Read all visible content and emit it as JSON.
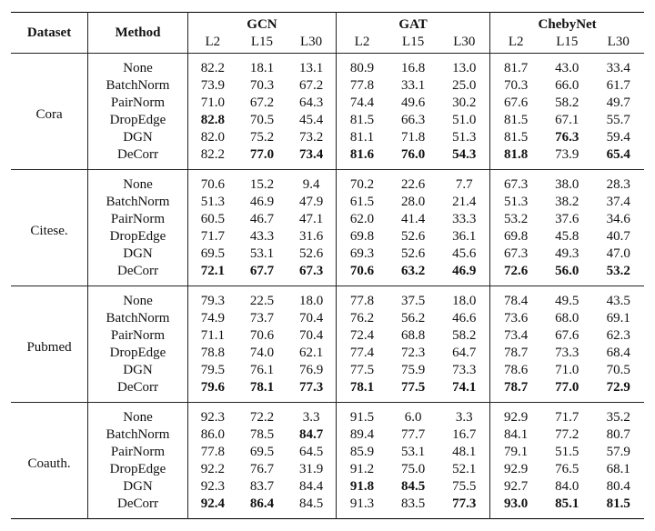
{
  "header": {
    "dataset": "Dataset",
    "method": "Method",
    "groups": [
      {
        "name": "GCN",
        "layers": [
          "L2",
          "L15",
          "L30"
        ]
      },
      {
        "name": "GAT",
        "layers": [
          "L2",
          "L15",
          "L30"
        ]
      },
      {
        "name": "ChebyNet",
        "layers": [
          "L2",
          "L15",
          "L30"
        ]
      }
    ]
  },
  "sections": [
    {
      "dataset": "Cora",
      "rows": [
        {
          "method": "None",
          "values": [
            "82.2",
            "18.1",
            "13.1",
            "80.9",
            "16.8",
            "13.0",
            "81.7",
            "43.0",
            "33.4"
          ],
          "bold": [
            false,
            false,
            false,
            false,
            false,
            false,
            false,
            false,
            false
          ]
        },
        {
          "method": "BatchNorm",
          "values": [
            "73.9",
            "70.3",
            "67.2",
            "77.8",
            "33.1",
            "25.0",
            "70.3",
            "66.0",
            "61.7"
          ],
          "bold": [
            false,
            false,
            false,
            false,
            false,
            false,
            false,
            false,
            false
          ]
        },
        {
          "method": "PairNorm",
          "values": [
            "71.0",
            "67.2",
            "64.3",
            "74.4",
            "49.6",
            "30.2",
            "67.6",
            "58.2",
            "49.7"
          ],
          "bold": [
            false,
            false,
            false,
            false,
            false,
            false,
            false,
            false,
            false
          ]
        },
        {
          "method": "DropEdge",
          "values": [
            "82.8",
            "70.5",
            "45.4",
            "81.5",
            "66.3",
            "51.0",
            "81.5",
            "67.1",
            "55.7"
          ],
          "bold": [
            true,
            false,
            false,
            false,
            false,
            false,
            false,
            false,
            false
          ]
        },
        {
          "method": "DGN",
          "values": [
            "82.0",
            "75.2",
            "73.2",
            "81.1",
            "71.8",
            "51.3",
            "81.5",
            "76.3",
            "59.4"
          ],
          "bold": [
            false,
            false,
            false,
            false,
            false,
            false,
            false,
            true,
            false
          ]
        },
        {
          "method": "DeCorr",
          "values": [
            "82.2",
            "77.0",
            "73.4",
            "81.6",
            "76.0",
            "54.3",
            "81.8",
            "73.9",
            "65.4"
          ],
          "bold": [
            false,
            true,
            true,
            true,
            true,
            true,
            true,
            false,
            true
          ]
        }
      ]
    },
    {
      "dataset": "Citese.",
      "rows": [
        {
          "method": "None",
          "values": [
            "70.6",
            "15.2",
            "9.4",
            "70.2",
            "22.6",
            "7.7",
            "67.3",
            "38.0",
            "28.3"
          ],
          "bold": [
            false,
            false,
            false,
            false,
            false,
            false,
            false,
            false,
            false
          ]
        },
        {
          "method": "BatchNorm",
          "values": [
            "51.3",
            "46.9",
            "47.9",
            "61.5",
            "28.0",
            "21.4",
            "51.3",
            "38.2",
            "37.4"
          ],
          "bold": [
            false,
            false,
            false,
            false,
            false,
            false,
            false,
            false,
            false
          ]
        },
        {
          "method": "PairNorm",
          "values": [
            "60.5",
            "46.7",
            "47.1",
            "62.0",
            "41.4",
            "33.3",
            "53.2",
            "37.6",
            "34.6"
          ],
          "bold": [
            false,
            false,
            false,
            false,
            false,
            false,
            false,
            false,
            false
          ]
        },
        {
          "method": "DropEdge",
          "values": [
            "71.7",
            "43.3",
            "31.6",
            "69.8",
            "52.6",
            "36.1",
            "69.8",
            "45.8",
            "40.7"
          ],
          "bold": [
            false,
            false,
            false,
            false,
            false,
            false,
            false,
            false,
            false
          ]
        },
        {
          "method": "DGN",
          "values": [
            "69.5",
            "53.1",
            "52.6",
            "69.3",
            "52.6",
            "45.6",
            "67.3",
            "49.3",
            "47.0"
          ],
          "bold": [
            false,
            false,
            false,
            false,
            false,
            false,
            false,
            false,
            false
          ]
        },
        {
          "method": "DeCorr",
          "values": [
            "72.1",
            "67.7",
            "67.3",
            "70.6",
            "63.2",
            "46.9",
            "72.6",
            "56.0",
            "53.2"
          ],
          "bold": [
            true,
            true,
            true,
            true,
            true,
            true,
            true,
            true,
            true
          ]
        }
      ]
    },
    {
      "dataset": "Pubmed",
      "rows": [
        {
          "method": "None",
          "values": [
            "79.3",
            "22.5",
            "18.0",
            "77.8",
            "37.5",
            "18.0",
            "78.4",
            "49.5",
            "43.5"
          ],
          "bold": [
            false,
            false,
            false,
            false,
            false,
            false,
            false,
            false,
            false
          ]
        },
        {
          "method": "BatchNorm",
          "values": [
            "74.9",
            "73.7",
            "70.4",
            "76.2",
            "56.2",
            "46.6",
            "73.6",
            "68.0",
            "69.1"
          ],
          "bold": [
            false,
            false,
            false,
            false,
            false,
            false,
            false,
            false,
            false
          ]
        },
        {
          "method": "PairNorm",
          "values": [
            "71.1",
            "70.6",
            "70.4",
            "72.4",
            "68.8",
            "58.2",
            "73.4",
            "67.6",
            "62.3"
          ],
          "bold": [
            false,
            false,
            false,
            false,
            false,
            false,
            false,
            false,
            false
          ]
        },
        {
          "method": "DropEdge",
          "values": [
            "78.8",
            "74.0",
            "62.1",
            "77.4",
            "72.3",
            "64.7",
            "78.7",
            "73.3",
            "68.4"
          ],
          "bold": [
            false,
            false,
            false,
            false,
            false,
            false,
            false,
            false,
            false
          ]
        },
        {
          "method": "DGN",
          "values": [
            "79.5",
            "76.1",
            "76.9",
            "77.5",
            "75.9",
            "73.3",
            "78.6",
            "71.0",
            "70.5"
          ],
          "bold": [
            false,
            false,
            false,
            false,
            false,
            false,
            false,
            false,
            false
          ]
        },
        {
          "method": "DeCorr",
          "values": [
            "79.6",
            "78.1",
            "77.3",
            "78.1",
            "77.5",
            "74.1",
            "78.7",
            "77.0",
            "72.9"
          ],
          "bold": [
            true,
            true,
            true,
            true,
            true,
            true,
            true,
            true,
            true
          ]
        }
      ]
    },
    {
      "dataset": "Coauth.",
      "rows": [
        {
          "method": "None",
          "values": [
            "92.3",
            "72.2",
            "3.3",
            "91.5",
            "6.0",
            "3.3",
            "92.9",
            "71.7",
            "35.2"
          ],
          "bold": [
            false,
            false,
            false,
            false,
            false,
            false,
            false,
            false,
            false
          ]
        },
        {
          "method": "BatchNorm",
          "values": [
            "86.0",
            "78.5",
            "84.7",
            "89.4",
            "77.7",
            "16.7",
            "84.1",
            "77.2",
            "80.7"
          ],
          "bold": [
            false,
            false,
            true,
            false,
            false,
            false,
            false,
            false,
            false
          ]
        },
        {
          "method": "PairNorm",
          "values": [
            "77.8",
            "69.5",
            "64.5",
            "85.9",
            "53.1",
            "48.1",
            "79.1",
            "51.5",
            "57.9"
          ],
          "bold": [
            false,
            false,
            false,
            false,
            false,
            false,
            false,
            false,
            false
          ]
        },
        {
          "method": "DropEdge",
          "values": [
            "92.2",
            "76.7",
            "31.9",
            "91.2",
            "75.0",
            "52.1",
            "92.9",
            "76.5",
            "68.1"
          ],
          "bold": [
            false,
            false,
            false,
            false,
            false,
            false,
            false,
            false,
            false
          ]
        },
        {
          "method": "DGN",
          "values": [
            "92.3",
            "83.7",
            "84.4",
            "91.8",
            "84.5",
            "75.5",
            "92.7",
            "84.0",
            "80.4"
          ],
          "bold": [
            false,
            false,
            false,
            true,
            true,
            false,
            false,
            false,
            false
          ]
        },
        {
          "method": "DeCorr",
          "values": [
            "92.4",
            "86.4",
            "84.5",
            "91.3",
            "83.5",
            "77.3",
            "93.0",
            "85.1",
            "81.5"
          ],
          "bold": [
            true,
            true,
            false,
            false,
            false,
            true,
            true,
            true,
            true
          ]
        }
      ]
    }
  ]
}
